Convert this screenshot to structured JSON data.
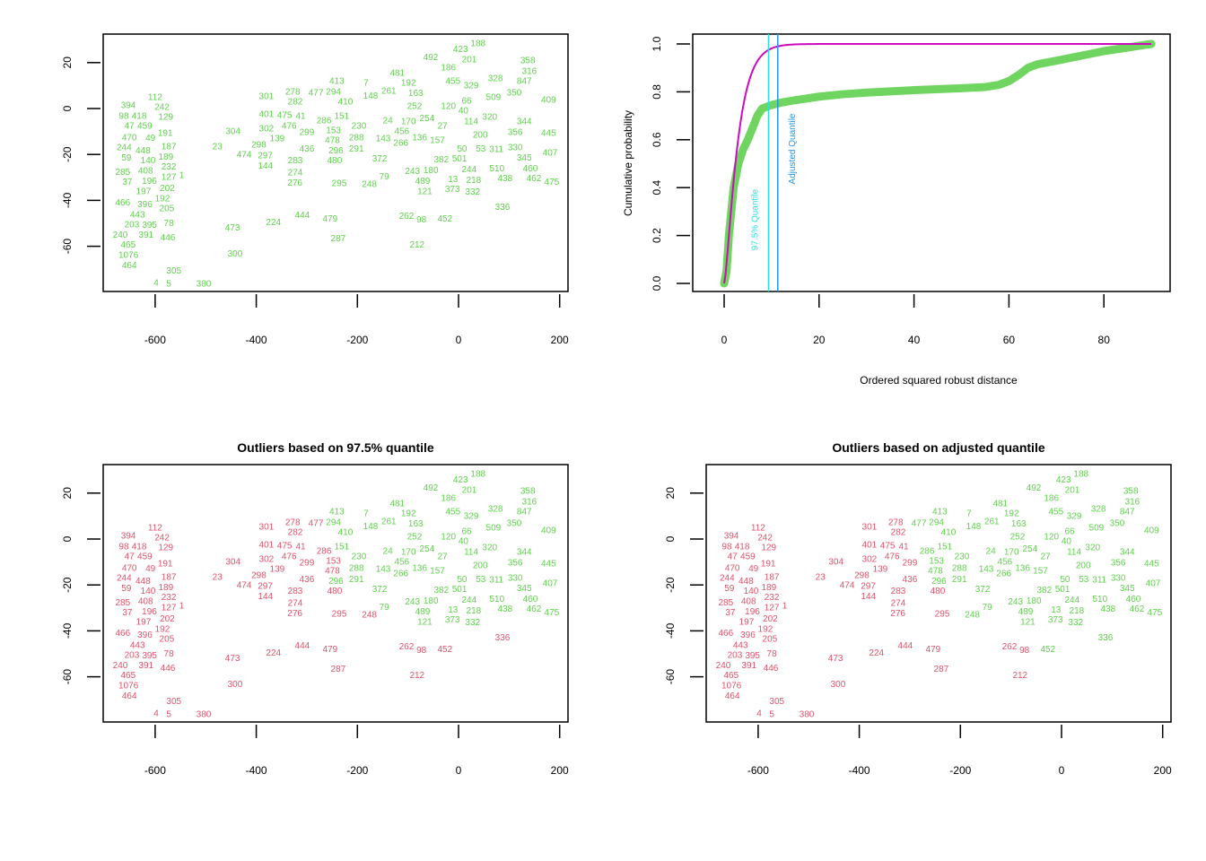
{
  "colors": {
    "regular": "#61D04F",
    "outlier": "#DF536B",
    "chisq_curve": "#CD0BBC",
    "quantile_975": "#28E2E5",
    "quantile_adj": "#2297E6"
  },
  "chart_data": [
    {
      "type": "scatter",
      "panel": "top-left",
      "title": "",
      "xlabel": "",
      "ylabel": "",
      "xlim": [
        -700,
        215
      ],
      "ylim": [
        -80,
        32
      ],
      "xticks": [
        -600,
        -400,
        -200,
        0,
        200
      ],
      "yticks": [
        20,
        0,
        -20,
        -40,
        -60
      ],
      "point_labels": true,
      "color_mode": "all-regular"
    },
    {
      "type": "line",
      "panel": "top-right",
      "title": "",
      "xlabel": "Ordered squared robust distance",
      "ylabel": "Cumulative probability",
      "xlim": [
        -2,
        94
      ],
      "ylim": [
        -0.01,
        1.05
      ],
      "xticks": [
        0,
        20,
        40,
        60,
        80
      ],
      "yticks": [
        0.0,
        0.2,
        0.4,
        0.6,
        0.8,
        1.0
      ],
      "ecdf": [
        [
          0,
          0
        ],
        [
          0.5,
          0.05
        ],
        [
          1,
          0.2
        ],
        [
          1.5,
          0.3
        ],
        [
          2,
          0.4
        ],
        [
          3,
          0.5
        ],
        [
          4,
          0.56
        ],
        [
          5,
          0.6
        ],
        [
          6,
          0.65
        ],
        [
          7,
          0.7
        ],
        [
          8,
          0.73
        ],
        [
          10,
          0.745
        ],
        [
          12,
          0.755
        ],
        [
          15,
          0.765
        ],
        [
          20,
          0.78
        ],
        [
          25,
          0.79
        ],
        [
          30,
          0.797
        ],
        [
          40,
          0.807
        ],
        [
          50,
          0.815
        ],
        [
          55,
          0.82
        ],
        [
          58,
          0.83
        ],
        [
          60,
          0.845
        ],
        [
          62,
          0.87
        ],
        [
          64,
          0.9
        ],
        [
          66,
          0.915
        ],
        [
          70,
          0.93
        ],
        [
          75,
          0.95
        ],
        [
          80,
          0.97
        ],
        [
          85,
          0.985
        ],
        [
          90,
          1.0
        ]
      ],
      "theoretical_cdf": "chi-square, 3 df",
      "quantile_975": 9.35,
      "quantile_adjusted": 11.3,
      "quantile_975_label": "97.5% Quantile",
      "quantile_adjusted_label": "Adjusted Quantile"
    },
    {
      "type": "scatter",
      "panel": "bottom-left",
      "title": "Outliers based on 97.5% quantile",
      "xlim": [
        -700,
        215
      ],
      "ylim": [
        -80,
        32
      ],
      "xticks": [
        -600,
        -400,
        -200,
        0,
        200
      ],
      "yticks": [
        20,
        0,
        -20,
        -40,
        -60
      ],
      "color_mode": "outlier_975"
    },
    {
      "type": "scatter",
      "panel": "bottom-right",
      "title": "Outliers based on adjusted quantile",
      "xlim": [
        -700,
        215
      ],
      "ylim": [
        -80,
        32
      ],
      "xticks": [
        -600,
        -400,
        -200,
        0,
        200
      ],
      "yticks": [
        20,
        0,
        -20,
        -40,
        -60
      ],
      "color_mode": "outlier_adjusted"
    }
  ],
  "points_columns": [
    "label",
    "x",
    "y",
    "outlier_975",
    "outlier_adjusted"
  ],
  "points": [
    [
      "394",
      -653,
      1.6,
      1,
      1
    ],
    [
      "112",
      -600,
      5.1,
      1,
      1
    ],
    [
      "242",
      -593,
      2.7,
      1,
      1
    ],
    [
      "98",
      -662,
      -3.1,
      1,
      1
    ],
    [
      "418",
      -637,
      -3.1,
      1,
      1
    ],
    [
      "47",
      -655,
      -6.3,
      1,
      1
    ],
    [
      "459",
      -632,
      -6.3,
      1,
      1
    ],
    [
      "129",
      -579,
      -3.1,
      1,
      1
    ],
    [
      "191",
      -580,
      -10.6,
      1,
      1
    ],
    [
      "470",
      -651,
      -12.5,
      1,
      1
    ],
    [
      "49",
      -607,
      -12.5,
      1,
      1
    ],
    [
      "244",
      -664,
      -16.1,
      1,
      1
    ],
    [
      "448",
      -641,
      -15.3,
      1,
      1
    ],
    [
      "187",
      -573,
      -16.5,
      1,
      1
    ],
    [
      "59",
      -643,
      -19.2,
      1,
      1
    ],
    [
      "140",
      -614,
      -21.6,
      1,
      1
    ],
    [
      "408",
      -619,
      -24.7,
      1,
      1
    ],
    [
      "189",
      -588,
      -20.0,
      1,
      1
    ],
    [
      "232",
      -573,
      -23.5,
      1,
      1
    ],
    [
      "127",
      -573,
      -27.1,
      1,
      1
    ],
    [
      "285",
      -664,
      -27.5,
      1,
      1
    ],
    [
      "37",
      -655,
      -31.4,
      1,
      1
    ],
    [
      "196",
      -614,
      -30.6,
      1,
      1
    ],
    [
      "202",
      -593,
      -31.8,
      1,
      1
    ],
    [
      "1",
      -582,
      -29.0,
      1,
      1
    ],
    [
      "197",
      -623,
      -34.1,
      1,
      1
    ],
    [
      "192",
      -591,
      -37.6,
      1,
      1
    ],
    [
      "205",
      -577,
      -40.8,
      1,
      1
    ],
    [
      "466",
      -664,
      -40.8,
      1,
      1
    ],
    [
      "396",
      -619,
      -41.2,
      1,
      1
    ],
    [
      "443",
      -635,
      -43.5,
      1,
      1
    ],
    [
      "203",
      -646,
      -47.8,
      1,
      1
    ],
    [
      "395",
      -628,
      -47.8,
      1,
      1
    ],
    [
      "391",
      -618,
      -51.0,
      1,
      1
    ],
    [
      "78",
      -573,
      -49.8,
      1,
      1
    ],
    [
      "240",
      -669,
      -54.9,
      1,
      1
    ],
    [
      "465",
      -660,
      -57.3,
      1,
      1
    ],
    [
      "1076",
      -662,
      -60.0,
      1,
      1
    ],
    [
      "446",
      -575,
      -56.1,
      1,
      1
    ],
    [
      "464",
      -660,
      -63.5,
      1,
      1
    ],
    [
      "305",
      -563,
      -70.6,
      1,
      1
    ],
    [
      "4",
      -598,
      -75.7,
      1,
      1
    ],
    [
      "5",
      -573,
      -76.1,
      1,
      1
    ],
    [
      "380",
      -504,
      -76.1,
      1,
      1
    ],
    [
      "473",
      -447,
      -51.8,
      1,
      1
    ],
    [
      "300",
      -442,
      -63.1,
      1,
      1
    ],
    [
      "224",
      -366,
      -49.4,
      1,
      1
    ],
    [
      "444",
      -309,
      -46.3,
      1,
      1
    ],
    [
      "479",
      -254,
      -47.8,
      1,
      1
    ],
    [
      "287",
      -238,
      -56.5,
      1,
      1
    ],
    [
      "23",
      -477,
      -16.5,
      1,
      1
    ],
    [
      "474",
      -424,
      -20.0,
      1,
      1
    ],
    [
      "304",
      -446,
      -9.8,
      1,
      1
    ],
    [
      "302",
      -380,
      -8.6,
      1,
      1
    ],
    [
      "139",
      -364,
      -11.4,
      1,
      1
    ],
    [
      "298",
      -387,
      -15.7,
      1,
      1
    ],
    [
      "297",
      -387,
      -16.9,
      1,
      1
    ],
    [
      "144",
      -382,
      -23.1,
      1,
      1
    ],
    [
      "283",
      -323,
      -22.4,
      1,
      1
    ],
    [
      "274",
      -323,
      -27.8,
      1,
      1
    ],
    [
      "276",
      -325,
      -31.8,
      1,
      1
    ],
    [
      "295",
      -236,
      -32.5,
      1,
      1
    ],
    [
      "436",
      -300,
      -17.3,
      1,
      1
    ],
    [
      "299",
      -300,
      -10.2,
      1,
      1
    ],
    [
      "476",
      -327,
      -7.5,
      1,
      1
    ],
    [
      "41",
      -311,
      -3.5,
      1,
      1
    ],
    [
      "401",
      -380,
      -2.4,
      1,
      1
    ],
    [
      "475",
      -360,
      -2.7,
      1,
      1
    ],
    [
      "301",
      -380,
      5.5,
      1,
      1
    ],
    [
      "278",
      -328,
      7.5,
      1,
      1
    ],
    [
      "282",
      -327,
      4.3,
      1,
      1
    ],
    [
      "477",
      -282,
      7.1,
      1,
      0
    ],
    [
      "294",
      -250,
      7.5,
      0,
      0
    ],
    [
      "413",
      -236,
      8.6,
      0,
      0
    ],
    [
      "410",
      -229,
      4.7,
      0,
      0
    ],
    [
      "286",
      -266,
      -5.1,
      1,
      0
    ],
    [
      "153",
      -254,
      -7.5,
      1,
      0
    ],
    [
      "478",
      -254,
      -9.4,
      1,
      0
    ],
    [
      "151",
      -247,
      -3.1,
      0,
      0
    ],
    [
      "296",
      -247,
      -12.9,
      0,
      0
    ],
    [
      "288",
      -202,
      -12.5,
      0,
      0
    ],
    [
      "230",
      -197,
      -7.5,
      0,
      0
    ],
    [
      "291",
      -202,
      -17.3,
      0,
      0
    ],
    [
      "480",
      -245,
      -21.6,
      1,
      1
    ],
    [
      "7",
      -183,
      11.4,
      0,
      0
    ],
    [
      "492",
      -55,
      22.4,
      0,
      0
    ],
    [
      "423",
      4,
      25.9,
      0,
      0
    ],
    [
      "188",
      28,
      28.6,
      0,
      0
    ],
    [
      "481",
      -121,
      15.7,
      0,
      0
    ],
    [
      "192",
      -99,
      12.2,
      0,
      0
    ],
    [
      "261",
      -138,
      7.8,
      0,
      0
    ],
    [
      "148",
      -167,
      6.3,
      0,
      0
    ],
    [
      "24",
      -140,
      -5.1,
      0,
      0
    ],
    [
      "170",
      -99,
      -5.5,
      0,
      0
    ],
    [
      "456",
      -112,
      -9.4,
      0,
      0
    ],
    [
      "143",
      -149,
      -12.9,
      0,
      0
    ],
    [
      "266",
      -130,
      -14.9,
      0,
      0
    ],
    [
      "372",
      -156,
      -21.6,
      0,
      0
    ],
    [
      "79",
      -147,
      -29.4,
      0,
      0
    ],
    [
      "248",
      -174,
      -32.5,
      1,
      0
    ],
    [
      "243",
      -91,
      -27.1,
      0,
      0
    ],
    [
      "180",
      -60,
      -26.7,
      0,
      0
    ],
    [
      "489",
      -71,
      -30.6,
      0,
      0
    ],
    [
      "121",
      -69,
      -35.7,
      0,
      0
    ],
    [
      "373",
      -12,
      -34.9,
      0,
      0
    ],
    [
      "332",
      28,
      -36.1,
      0,
      0
    ],
    [
      "262",
      -103,
      -46.7,
      1,
      1
    ],
    [
      "98",
      -76,
      -48.2,
      1,
      1
    ],
    [
      "452",
      -27,
      -47.8,
      1,
      0
    ],
    [
      "212",
      -82,
      -59.2,
      1,
      1
    ],
    [
      "336",
      87,
      -42.7,
      1,
      0
    ],
    [
      "510",
      76,
      -25.9,
      0,
      0
    ],
    [
      "438",
      92,
      -28.6,
      0,
      0
    ],
    [
      "218",
      30,
      -31.0,
      0,
      0
    ],
    [
      "244",
      21,
      -29.0,
      0,
      0
    ],
    [
      "13",
      -11,
      -30.6,
      0,
      0
    ],
    [
      "345",
      130,
      -21.2,
      0,
      0
    ],
    [
      "460",
      142,
      -25.9,
      0,
      0
    ],
    [
      "462",
      149,
      -29.8,
      0,
      0
    ],
    [
      "475",
      179,
      -31.8,
      0,
      0
    ],
    [
      "407",
      181,
      -19.2,
      0,
      0
    ],
    [
      "445",
      178,
      -10.6,
      0,
      0
    ],
    [
      "344",
      130,
      -5.5,
      0,
      0
    ],
    [
      "356",
      112,
      -10.2,
      0,
      0
    ],
    [
      "409",
      178,
      3.9,
      0,
      0
    ],
    [
      "316",
      140,
      16.5,
      0,
      0
    ],
    [
      "847",
      130,
      12.2,
      0,
      0
    ],
    [
      "358",
      137,
      18.8,
      0,
      0
    ],
    [
      "350",
      110,
      7.1,
      0,
      0
    ],
    [
      "328",
      73,
      13.3,
      0,
      0
    ],
    [
      "311",
      75,
      -17.6,
      0,
      0
    ],
    [
      "382",
      -34,
      -22.0,
      0,
      0
    ],
    [
      "136",
      -85,
      -12.5,
      0,
      0
    ],
    [
      "186",
      -20,
      18.0,
      0,
      0
    ],
    [
      "201",
      16,
      23.1,
      0,
      0
    ],
    [
      "455",
      -11,
      12.2,
      0,
      0
    ],
    [
      "329",
      25,
      10.2,
      0,
      0
    ],
    [
      "120",
      -20,
      1.2,
      0,
      0
    ],
    [
      "252",
      -87,
      1.2,
      0,
      0
    ],
    [
      "254",
      -73,
      -1.6,
      0,
      0
    ],
    [
      "163",
      -87,
      7.1,
      0,
      0
    ],
    [
      "509",
      69,
      5.1,
      0,
      0
    ],
    [
      "501",
      -5,
      -22.4,
      0,
      0
    ],
    [
      "50",
      7,
      -19.2,
      0,
      0
    ],
    [
      "114",
      25,
      -5.5,
      0,
      0
    ],
    [
      "157",
      -55,
      -13.7,
      0,
      0
    ],
    [
      "320",
      51,
      -3.5,
      0,
      0
    ],
    [
      "27",
      -37,
      -7.5,
      0,
      0
    ],
    [
      "66",
      16,
      3.5,
      0,
      0
    ],
    [
      "200",
      43,
      -11.4,
      0,
      0
    ],
    [
      "53",
      60,
      -17.3,
      0,
      0
    ],
    [
      "330",
      66,
      -21.2,
      0,
      0
    ],
    [
      "40",
      7,
      -1.6,
      0,
      0
    ]
  ]
}
